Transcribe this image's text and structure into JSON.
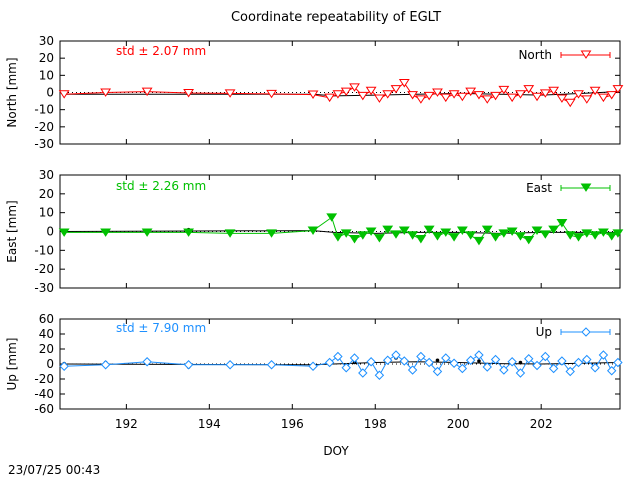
{
  "title": "Coordinate repeatability of EGLT",
  "footer": "23/07/25 00:43",
  "chart_data": [
    {
      "type": "line",
      "panel": "north",
      "ylabel": "North [mm]",
      "ylim": [
        -30,
        30
      ],
      "yticks": [
        "30",
        "20",
        "10",
        "0",
        "-10",
        "-20",
        "-30"
      ],
      "xlim": [
        190.4,
        203.9
      ],
      "xticks": [],
      "legend": "North",
      "legend_position": "top-right",
      "std_label": "std ± 2.07 mm",
      "color": "#ff0000",
      "marker": "open-triangle-down",
      "x_daily": [
        190.5,
        191.5,
        192.5,
        193.5,
        194.5,
        195.5,
        196.5
      ],
      "y_daily": [
        -1.0,
        0.0,
        1.0,
        -0.2,
        -0.3,
        -0.5,
        -1.0
      ],
      "x_sub": [
        190.5,
        191.5,
        192.5,
        193.5,
        194.5,
        195.5,
        196.5,
        196.9,
        197.1,
        197.3,
        197.5,
        197.7,
        197.9,
        198.1,
        198.3,
        198.5,
        198.7,
        198.9,
        199.1,
        199.3,
        199.5,
        199.7,
        199.9,
        200.1,
        200.3,
        200.5,
        200.7,
        200.9,
        201.1,
        201.3,
        201.5,
        201.7,
        201.9,
        202.1,
        202.3,
        202.5,
        202.7,
        202.9,
        203.1,
        203.3,
        203.5,
        203.7,
        203.85
      ],
      "y_sub": [
        -1.0,
        0.0,
        0.5,
        -0.3,
        -0.5,
        -0.8,
        -1.2,
        -3.0,
        -1.0,
        0.5,
        3.0,
        -2.0,
        1.0,
        -3.5,
        -1.0,
        2.0,
        5.5,
        -1.5,
        -4.0,
        -2.0,
        0.0,
        -3.0,
        -1.0,
        -2.5,
        0.5,
        -1.5,
        -4.0,
        -2.0,
        1.5,
        -3.0,
        -1.0,
        2.0,
        -2.5,
        -0.5,
        1.0,
        -3.5,
        -6.0,
        -1.0,
        -4.0,
        1.0,
        -3.0,
        -1.5,
        2.0
      ],
      "x_ref": [
        190.5,
        196.5,
        197.0,
        198.0,
        199.0,
        200.0,
        201.0,
        202.0,
        203.0,
        203.85
      ],
      "y_ref": [
        -1.0,
        -1.0,
        -2.0,
        -1.5,
        -1.0,
        -0.5,
        -1.0,
        -1.5,
        -0.5,
        0.5
      ]
    },
    {
      "type": "line",
      "panel": "east",
      "ylabel": "East [mm]",
      "ylim": [
        -30,
        30
      ],
      "yticks": [
        "30",
        "20",
        "10",
        "0",
        "-10",
        "-20",
        "-30"
      ],
      "xlim": [
        190.4,
        203.9
      ],
      "xticks": [],
      "legend": "East",
      "legend_position": "top-right",
      "std_label": "std ± 2.26 mm",
      "color": "#00c000",
      "marker": "filled-triangle-down",
      "x_daily": [
        190.5,
        191.5,
        192.5,
        193.5,
        194.5,
        195.5,
        196.5
      ],
      "y_daily": [
        0.5,
        0.2,
        0.0,
        1.0,
        -0.5,
        -0.3,
        0.5
      ],
      "x_sub": [
        190.5,
        191.5,
        192.5,
        193.5,
        194.5,
        195.5,
        196.5,
        196.95,
        197.1,
        197.3,
        197.5,
        197.7,
        197.9,
        198.1,
        198.3,
        198.5,
        198.7,
        198.9,
        199.1,
        199.3,
        199.5,
        199.7,
        199.9,
        200.1,
        200.3,
        200.5,
        200.7,
        200.9,
        201.1,
        201.3,
        201.5,
        201.7,
        201.9,
        202.1,
        202.3,
        202.5,
        202.7,
        202.9,
        203.1,
        203.3,
        203.5,
        203.7,
        203.85
      ],
      "y_sub": [
        -0.5,
        -0.5,
        -0.5,
        -0.5,
        -1.0,
        -1.0,
        0.5,
        7.5,
        -3.0,
        -1.0,
        -4.0,
        -2.0,
        0.0,
        -3.5,
        1.0,
        -1.5,
        0.5,
        -2.0,
        -4.0,
        1.0,
        -2.5,
        -0.5,
        -3.0,
        0.5,
        -2.0,
        -5.0,
        1.0,
        -3.0,
        -1.0,
        0.0,
        -2.5,
        -4.5,
        0.5,
        -1.5,
        1.0,
        4.5,
        -2.0,
        -3.0,
        -1.0,
        -2.0,
        -0.5,
        -2.5,
        -1.0
      ],
      "x_ref": [
        190.5,
        196.5,
        197.0,
        198.0,
        199.0,
        200.0,
        201.0,
        202.0,
        203.0,
        203.85
      ],
      "y_ref": [
        0.0,
        0.5,
        -0.5,
        -1.0,
        -0.5,
        -0.5,
        -1.0,
        -0.5,
        -0.5,
        -0.5
      ]
    },
    {
      "type": "line",
      "panel": "up",
      "ylabel": "Up [mm]",
      "ylim": [
        -60,
        60
      ],
      "yticks": [
        "60",
        "40",
        "20",
        "0",
        "-20",
        "-40",
        "-60"
      ],
      "xlim": [
        190.4,
        203.9
      ],
      "xlabel": "DOY",
      "xticks": [
        "192",
        "194",
        "196",
        "198",
        "200",
        "202"
      ],
      "legend": "Up",
      "legend_position": "top-right",
      "std_label": "std ± 7.90 mm",
      "color": "#1e90ff",
      "marker": "open-diamond",
      "x_daily": [
        190.5,
        191.5,
        192.5,
        193.5,
        194.5,
        195.5,
        196.5,
        197.5,
        198.5,
        199.5,
        200.5,
        201.5,
        202.5
      ],
      "y_daily": [
        0.5,
        2.0,
        4.0,
        -4.0,
        -3.0,
        -0.5,
        -1.0,
        2.0,
        8.0,
        5.0,
        4.0,
        2.0,
        1.0
      ],
      "x_sub": [
        190.5,
        191.5,
        192.5,
        193.5,
        194.5,
        195.5,
        196.5,
        196.9,
        197.1,
        197.3,
        197.5,
        197.7,
        197.9,
        198.1,
        198.3,
        198.5,
        198.7,
        198.9,
        199.1,
        199.3,
        199.5,
        199.7,
        199.9,
        200.1,
        200.3,
        200.5,
        200.7,
        200.9,
        201.1,
        201.3,
        201.5,
        201.7,
        201.9,
        202.1,
        202.3,
        202.5,
        202.7,
        202.9,
        203.1,
        203.3,
        203.5,
        203.7,
        203.85
      ],
      "y_sub": [
        -3.0,
        -1.0,
        3.0,
        -1.0,
        -1.0,
        -1.0,
        -3.0,
        2.0,
        10.0,
        -5.0,
        8.0,
        -12.0,
        3.0,
        -15.0,
        5.0,
        12.0,
        4.0,
        -8.0,
        10.0,
        2.0,
        -10.0,
        8.0,
        1.0,
        -6.0,
        5.0,
        12.0,
        -4.0,
        6.0,
        -8.0,
        3.0,
        -12.0,
        7.0,
        -2.0,
        10.0,
        -6.0,
        4.0,
        -10.0,
        2.0,
        6.0,
        -5.0,
        12.0,
        -9.0,
        2.0
      ],
      "x_ref": [
        190.5,
        196.5,
        197.0,
        198.0,
        199.0,
        200.0,
        201.0,
        202.0,
        203.0,
        203.85
      ],
      "y_ref": [
        0.0,
        -1.0,
        0.0,
        2.0,
        3.0,
        2.0,
        0.5,
        0.0,
        1.0,
        2.0
      ]
    }
  ]
}
